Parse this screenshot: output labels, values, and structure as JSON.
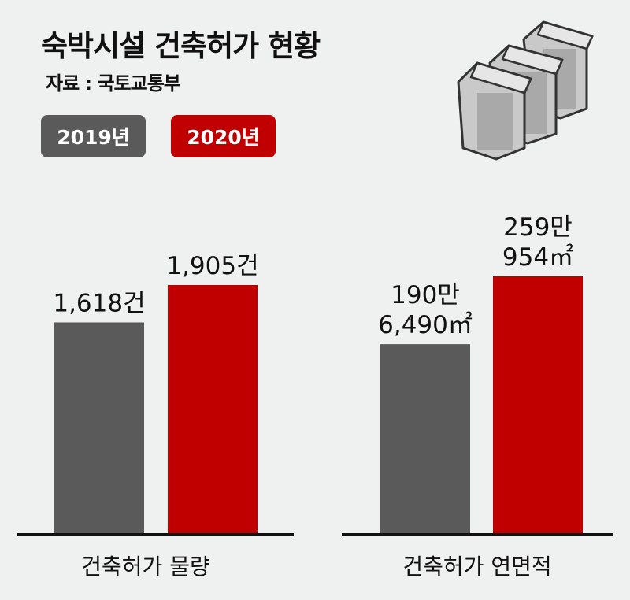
{
  "title": "숙박시설 건축허가 현황",
  "source": "자료 : 국토교통부",
  "colors": {
    "2019": "#5a5a5a",
    "2020": "#c00000",
    "background": "#eef1f0"
  },
  "legend": [
    {
      "label": "2019년",
      "color": "#5a5a5a"
    },
    {
      "label": "2020년",
      "color": "#c00000"
    }
  ],
  "illustration": {
    "icon": "buildings-icon"
  },
  "chart_data": [
    {
      "type": "bar",
      "category": "건축허가 물량",
      "series": [
        {
          "name": "2019년",
          "value": 1618,
          "label_lines": [
            "1,618건"
          ]
        },
        {
          "name": "2020년",
          "value": 1905,
          "label_lines": [
            "1,905건"
          ]
        }
      ],
      "unit": "건"
    },
    {
      "type": "bar",
      "category": "건축허가 연면적",
      "series": [
        {
          "name": "2019년",
          "value": 1906490,
          "label_lines": [
            "190만",
            "6,490㎡"
          ]
        },
        {
          "name": "2020년",
          "value": 2590954,
          "label_lines": [
            "259만",
            "954㎡"
          ]
        }
      ],
      "unit": "㎡"
    }
  ]
}
